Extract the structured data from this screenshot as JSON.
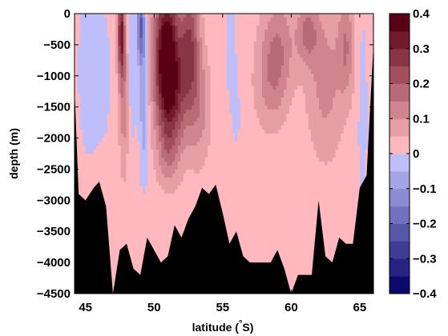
{
  "chart_data": {
    "type": "heatmap",
    "title": "",
    "xlabel": "latitude (",
    "xlabel_degree": "°",
    "xlabel_unit": "S)",
    "ylabel": "depth (m)",
    "xlim": [
      44.2,
      66.0
    ],
    "ylim": [
      -4500,
      0
    ],
    "xticks": [
      45,
      50,
      55,
      60,
      65
    ],
    "xtick_labels": [
      "45",
      "50",
      "55",
      "60",
      "65"
    ],
    "yticks": [
      0,
      -500,
      -1000,
      -1500,
      -2000,
      -2500,
      -3000,
      -3500,
      -4000,
      -4500
    ],
    "ytick_labels": [
      "0",
      "−500",
      "−1000",
      "−1500",
      "−2000",
      "−2500",
      "−3000",
      "−3500",
      "−4000",
      "−4500"
    ],
    "colorbar": {
      "range": [
        -0.4,
        0.4
      ],
      "ticks": [
        0.4,
        0.3,
        0.2,
        0.1,
        0,
        -0.1,
        -0.2,
        -0.3,
        -0.4
      ],
      "tick_labels": [
        "0.4",
        "0.3",
        "0.2",
        "0.1",
        "0",
        "−0.1",
        "−0.2",
        "−0.3",
        "−0.4"
      ]
    },
    "background_value": 0.02,
    "bathymetry": {
      "lat": [
        44.2,
        44.5,
        45.0,
        45.6,
        46.0,
        46.5,
        47.0,
        47.5,
        48.0,
        48.5,
        49.0,
        49.5,
        50.0,
        50.5,
        51.0,
        51.5,
        52.0,
        52.5,
        53.0,
        53.5,
        54.0,
        54.5,
        55.0,
        55.5,
        56.0,
        56.5,
        57.0,
        57.5,
        58.0,
        58.5,
        59.0,
        59.5,
        60.0,
        60.5,
        61.0,
        61.5,
        62.0,
        62.5,
        63.0,
        63.5,
        64.0,
        64.5,
        65.0,
        65.5,
        66.0
      ],
      "depth": [
        -1200,
        -2900,
        -3000,
        -2800,
        -2700,
        -3100,
        -4500,
        -3800,
        -3700,
        -4100,
        -4200,
        -3600,
        -3800,
        -4000,
        -3900,
        -3400,
        -3600,
        -3300,
        -3100,
        -2800,
        -2900,
        -2750,
        -3200,
        -3700,
        -3500,
        -3900,
        -4000,
        -4000,
        -4000,
        -4000,
        -3800,
        -4100,
        -4500,
        -4200,
        -4200,
        -4200,
        -3000,
        -3900,
        -4000,
        -3600,
        -3700,
        -3700,
        -2800,
        -2600,
        -500
      ]
    },
    "anomaly_features": [
      {
        "lat": 45.3,
        "depth": -900,
        "lat_width": 0.8,
        "depth_width": 1300,
        "value": -0.06
      },
      {
        "lat": 46.3,
        "depth": -1000,
        "lat_width": 0.5,
        "depth_width": 900,
        "value": -0.05
      },
      {
        "lat": 47.6,
        "depth": -300,
        "lat_width": 0.25,
        "depth_width": 700,
        "value": 0.28
      },
      {
        "lat": 47.8,
        "depth": -1300,
        "lat_width": 0.35,
        "depth_width": 1200,
        "value": 0.12
      },
      {
        "lat": 48.4,
        "depth": -700,
        "lat_width": 0.35,
        "depth_width": 1200,
        "value": -0.07
      },
      {
        "lat": 49.0,
        "depth": -200,
        "lat_width": 0.25,
        "depth_width": 500,
        "value": -0.18
      },
      {
        "lat": 49.2,
        "depth": -900,
        "lat_width": 0.3,
        "depth_width": 1200,
        "value": -0.12
      },
      {
        "lat": 49.3,
        "depth": -2200,
        "lat_width": 0.3,
        "depth_width": 700,
        "value": -0.04
      },
      {
        "lat": 50.9,
        "depth": -600,
        "lat_width": 0.9,
        "depth_width": 1100,
        "value": 0.38
      },
      {
        "lat": 51.4,
        "depth": -1400,
        "lat_width": 1.1,
        "depth_width": 900,
        "value": 0.18
      },
      {
        "lat": 52.6,
        "depth": -500,
        "lat_width": 0.7,
        "depth_width": 1000,
        "value": 0.22
      },
      {
        "lat": 53.3,
        "depth": -1500,
        "lat_width": 0.8,
        "depth_width": 900,
        "value": 0.1
      },
      {
        "lat": 51.0,
        "depth": -2300,
        "lat_width": 0.8,
        "depth_width": 500,
        "value": 0.07
      },
      {
        "lat": 55.6,
        "depth": -400,
        "lat_width": 0.35,
        "depth_width": 900,
        "value": -0.06
      },
      {
        "lat": 56.0,
        "depth": -1600,
        "lat_width": 0.4,
        "depth_width": 700,
        "value": -0.03
      },
      {
        "lat": 59.0,
        "depth": -500,
        "lat_width": 1.2,
        "depth_width": 800,
        "value": 0.12
      },
      {
        "lat": 58.5,
        "depth": -1200,
        "lat_width": 1.2,
        "depth_width": 700,
        "value": 0.08
      },
      {
        "lat": 61.2,
        "depth": -300,
        "lat_width": 0.8,
        "depth_width": 500,
        "value": 0.14
      },
      {
        "lat": 62.5,
        "depth": -1100,
        "lat_width": 1.3,
        "depth_width": 1200,
        "value": 0.1
      },
      {
        "lat": 64.0,
        "depth": -500,
        "lat_width": 0.6,
        "depth_width": 800,
        "value": 0.12
      },
      {
        "lat": 65.2,
        "depth": -1600,
        "lat_width": 0.4,
        "depth_width": 1800,
        "value": -0.04
      }
    ],
    "colors": {
      "land": "#000000",
      "frame": "#000000"
    }
  }
}
